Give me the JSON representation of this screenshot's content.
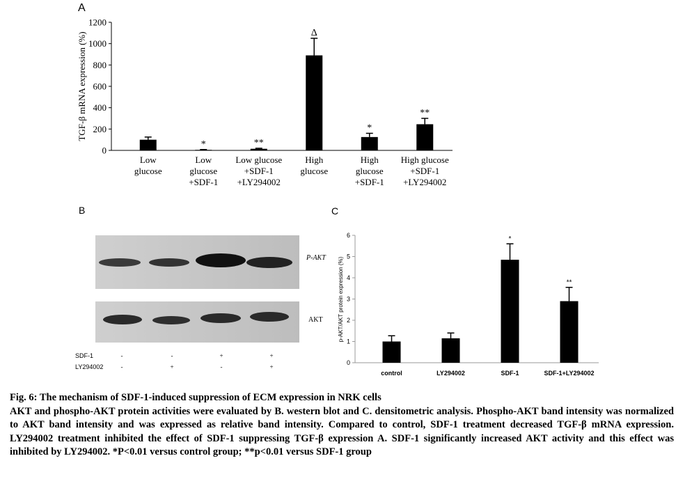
{
  "chart_data": [
    {
      "type": "bar",
      "label": "A",
      "ylabel": "TGF-β mRNA expression (%)",
      "categories": [
        "Low\nglucose",
        "Low\nglucose\n+SDF-1",
        "Low glucose\n+SDF-1\n+LY294002",
        "High\nglucose",
        "High\nglucose\n+SDF-1",
        "High glucose\n+SDF-1\n+LY294002"
      ],
      "values": [
        100,
        5,
        15,
        890,
        125,
        245
      ],
      "errors": [
        25,
        3,
        5,
        160,
        35,
        55
      ],
      "annotations": [
        null,
        "*",
        "**",
        "Δ",
        "*",
        "**"
      ],
      "color": "#000000",
      "ylim": [
        0,
        1200
      ],
      "yticks": [
        0,
        200,
        400,
        600,
        800,
        1000,
        1200
      ]
    },
    {
      "type": "bar",
      "label": "C",
      "ylabel": "p-AKT/AKT protein expression (%)",
      "categories": [
        "control",
        "LY294002",
        "SDF-1",
        "SDF-1+LY294002"
      ],
      "values": [
        1.0,
        1.15,
        4.85,
        2.9
      ],
      "errors": [
        0.27,
        0.25,
        0.75,
        0.65
      ],
      "annotations": [
        null,
        null,
        "*",
        "**"
      ],
      "color": "#000000",
      "ylim": [
        0,
        6
      ],
      "yticks": [
        0,
        1,
        2,
        3,
        4,
        5,
        6
      ]
    }
  ],
  "blot": {
    "label": "B",
    "bands": [
      "P-AKT",
      "AKT"
    ],
    "rows": [
      {
        "name": "SDF-1",
        "signs": [
          "-",
          "-",
          "+",
          "+"
        ]
      },
      {
        "name": "LY294002",
        "signs": [
          "-",
          "+",
          "-",
          "+"
        ]
      }
    ]
  },
  "caption": {
    "title": "Fig. 6: The mechanism of SDF-1-induced suppression of ECM expression in NRK cells",
    "text": "AKT and phospho-AKT protein activities were evaluated by B. western blot and C. densitometric analysis. Phospho-AKT band intensity was normalized to AKT band intensity and was expressed as relative band intensity. Compared to control, SDF-1 treatment decreased TGF-β mRNA expression. LY294002 treatment inhibited the effect of SDF-1 suppressing TGF-β expression A. SDF-1 significantly increased AKT activity and this effect was inhibited by LY294002. *P<0.01 versus control group; **p<0.01 versus SDF-1 group"
  }
}
